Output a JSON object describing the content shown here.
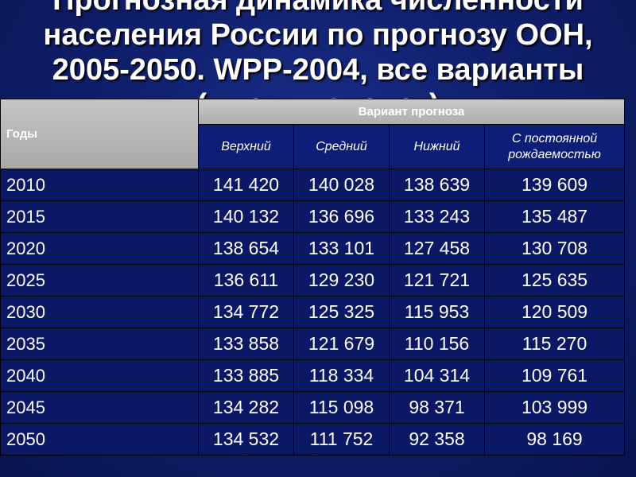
{
  "title": {
    "line1": "Прогнозная динамика численности",
    "line2": "населения России по прогнозу ООН,",
    "line3": "2005-2050. WPP-2004, все варианты",
    "line4": "(тысяч человек)"
  },
  "table": {
    "years_header": "Годы",
    "variant_header": "Вариант прогноза",
    "columns": [
      "Верхний",
      "Средний",
      "Нижний",
      "С постоянной рождаемостью"
    ],
    "rows": [
      {
        "year": "2010",
        "values": [
          "141 420",
          "140 028",
          "138 639",
          "139 609"
        ]
      },
      {
        "year": "2015",
        "values": [
          "140 132",
          "136 696",
          "133 243",
          "135 487"
        ]
      },
      {
        "year": "2020",
        "values": [
          "138 654",
          "133 101",
          "127 458",
          "130 708"
        ]
      },
      {
        "year": "2025",
        "values": [
          "136 611",
          "129 230",
          "121 721",
          "125 635"
        ]
      },
      {
        "year": "2030",
        "values": [
          "134 772",
          "125 325",
          "115 953",
          "120 509"
        ]
      },
      {
        "year": "2035",
        "values": [
          "133 858",
          "121 679",
          "110 156",
          "115 270"
        ]
      },
      {
        "year": "2040",
        "values": [
          "133 885",
          "118 334",
          "104 314",
          "109 761"
        ]
      },
      {
        "year": "2045",
        "values": [
          "134 282",
          "115 098",
          "98 371",
          "103 999"
        ]
      },
      {
        "year": "2050",
        "values": [
          "134 532",
          "111 752",
          "92 358",
          "98 169"
        ]
      }
    ]
  },
  "colors": {
    "background": "#10206e",
    "header_gray": "#b9b9b9",
    "text": "#ffffff"
  }
}
